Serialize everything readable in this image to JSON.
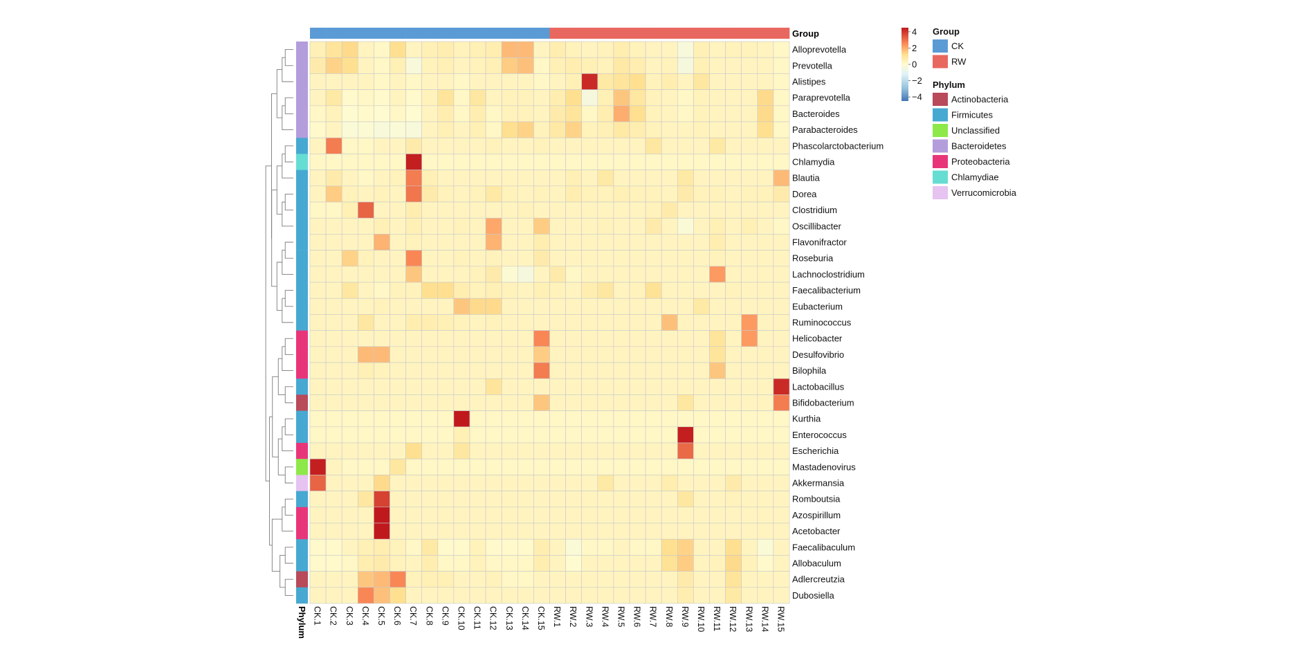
{
  "chart_data": {
    "type": "heatmap",
    "title": "",
    "xlabel": "",
    "ylabel": "",
    "columns": [
      "CK.1",
      "CK.2",
      "CK.3",
      "CK.4",
      "CK.5",
      "CK.6",
      "CK.7",
      "CK.8",
      "CK.9",
      "CK.10",
      "CK.11",
      "CK.12",
      "CK.13",
      "CK.14",
      "CK.15",
      "RW.1",
      "RW.2",
      "RW.3",
      "RW.4",
      "RW.5",
      "RW.6",
      "RW.7",
      "RW.8",
      "RW.9",
      "RW.10",
      "RW.11",
      "RW.12",
      "RW.13",
      "RW.14",
      "RW.15"
    ],
    "column_groups": [
      "CK",
      "CK",
      "CK",
      "CK",
      "CK",
      "CK",
      "CK",
      "CK",
      "CK",
      "CK",
      "CK",
      "CK",
      "CK",
      "CK",
      "CK",
      "RW",
      "RW",
      "RW",
      "RW",
      "RW",
      "RW",
      "RW",
      "RW",
      "RW",
      "RW",
      "RW",
      "RW",
      "RW",
      "RW",
      "RW"
    ],
    "rows": [
      "Alloprevotella",
      "Prevotella",
      "Alistipes",
      "Paraprevotella",
      "Bacteroides",
      "Parabacteroides",
      "Phascolarctobacterium",
      "Chlamydia",
      "Blautia",
      "Dorea",
      "Clostridium",
      "Oscillibacter",
      "Flavonifractor",
      "Roseburia",
      "Lachnoclostridium",
      "Faecalibacterium",
      "Eubacterium",
      "Ruminococcus",
      "Helicobacter",
      "Desulfovibrio",
      "Bilophila",
      "Lactobacillus",
      "Bifidobacterium",
      "Kurthia",
      "Enterococcus",
      "Escherichia",
      "Mastadenovirus",
      "Akkermansia",
      "Romboutsia",
      "Azospirillum",
      "Acetobacter",
      "Faecalibaculum",
      "Allobaculum",
      "Adlercreutzia",
      "Dubosiella"
    ],
    "row_phylum": [
      "Bacteroidetes",
      "Bacteroidetes",
      "Bacteroidetes",
      "Bacteroidetes",
      "Bacteroidetes",
      "Bacteroidetes",
      "Firmicutes",
      "Chlamydiae",
      "Firmicutes",
      "Firmicutes",
      "Firmicutes",
      "Firmicutes",
      "Firmicutes",
      "Firmicutes",
      "Firmicutes",
      "Firmicutes",
      "Firmicutes",
      "Firmicutes",
      "Proteobacteria",
      "Proteobacteria",
      "Proteobacteria",
      "Firmicutes",
      "Actinobacteria",
      "Firmicutes",
      "Firmicutes",
      "Proteobacteria",
      "Unclassified",
      "Verrucomicrobia",
      "Firmicutes",
      "Proteobacteria",
      "Proteobacteria",
      "Firmicutes",
      "Firmicutes",
      "Actinobacteria",
      "Firmicutes"
    ],
    "values": [
      [
        0.5,
        1,
        1.3,
        0.3,
        0.2,
        1.2,
        0.3,
        0.5,
        0.6,
        0.4,
        0.5,
        0.6,
        1.8,
        1.8,
        0.3,
        0.6,
        0.4,
        0.3,
        0.4,
        0.6,
        0.4,
        0.3,
        0.3,
        -0.3,
        0.5,
        0.3,
        0.4,
        0.4,
        0.3,
        0.2
      ],
      [
        0.7,
        1.4,
        1.2,
        0.3,
        0.2,
        0.5,
        -0.3,
        0.4,
        0.5,
        0.3,
        0.4,
        0.5,
        1.5,
        1.7,
        0.2,
        0.5,
        0.6,
        0.5,
        0.4,
        0.8,
        0.6,
        0.3,
        0.4,
        -0.4,
        0.5,
        0.3,
        0.3,
        0.3,
        0.3,
        0.2
      ],
      [
        0.3,
        0.3,
        0.3,
        0.3,
        0.2,
        0.3,
        0.2,
        0.3,
        0.3,
        0.2,
        0.3,
        0.3,
        0.3,
        0.3,
        0.2,
        0.3,
        0.5,
        4.2,
        0.8,
        1,
        1.2,
        0.4,
        0.6,
        0.3,
        0.9,
        0.3,
        0.3,
        0.3,
        0.3,
        0.2
      ],
      [
        0.3,
        0.8,
        0.1,
        0.2,
        0.1,
        0.3,
        0.1,
        0.4,
        1,
        0.2,
        0.9,
        0.3,
        0.4,
        0.4,
        0.3,
        0.6,
        1.2,
        -0.4,
        0.5,
        1.6,
        0.9,
        0.4,
        0.3,
        0.2,
        0.4,
        0.3,
        0.3,
        0.3,
        1.3,
        0.2
      ],
      [
        0.2,
        0.4,
        0,
        0.1,
        0,
        0.2,
        0,
        0.3,
        0.6,
        0.2,
        0.6,
        0.2,
        0.4,
        0.4,
        0.3,
        0.7,
        1,
        0.2,
        0.6,
        2,
        1.2,
        0.4,
        0.3,
        0.2,
        0.4,
        0.3,
        0.3,
        0.3,
        1.3,
        0.2
      ],
      [
        0.1,
        0.3,
        -0.2,
        -0.1,
        -0.3,
        -0.2,
        -0.3,
        0.3,
        0.5,
        0.3,
        0.5,
        0.2,
        1.2,
        1.4,
        0.4,
        0.8,
        1.4,
        0.4,
        0.5,
        0.8,
        0.6,
        0.4,
        0.3,
        0.3,
        0.4,
        0.3,
        0.3,
        0.3,
        1.2,
        0.2
      ],
      [
        0.3,
        2.8,
        0.2,
        0.2,
        0.3,
        0.3,
        0.7,
        0.3,
        0.3,
        0.3,
        0.3,
        0.4,
        0.3,
        0.3,
        0.4,
        0.3,
        0.3,
        0.3,
        0.3,
        0.3,
        0.3,
        0.9,
        0.3,
        0.3,
        0.3,
        0.8,
        0.3,
        0.3,
        0.3,
        0.3
      ],
      [
        0.2,
        0.2,
        0.2,
        0.2,
        0.2,
        0.2,
        4.4,
        0.2,
        0.2,
        0.2,
        0.2,
        0.2,
        0.2,
        0.2,
        0.2,
        0.2,
        0.2,
        0.2,
        0.2,
        0.2,
        0.2,
        0.2,
        0.2,
        0.2,
        0.2,
        0.2,
        0.2,
        0.2,
        0.2,
        0.2
      ],
      [
        0.3,
        0.7,
        0.3,
        0.2,
        0.3,
        0.4,
        2.8,
        0.5,
        0.3,
        0.3,
        0.3,
        0.3,
        0.3,
        0.3,
        0.3,
        0.3,
        0.5,
        0.3,
        0.8,
        0.3,
        0.3,
        0.3,
        0.3,
        0.8,
        0.3,
        0.3,
        0.3,
        0.3,
        0.3,
        1.8
      ],
      [
        0.3,
        1.5,
        0.4,
        0.3,
        0.4,
        0.3,
        2.9,
        0.7,
        0.4,
        0.3,
        0.4,
        0.8,
        0.4,
        0.3,
        0.4,
        0.3,
        0.6,
        0.4,
        0.4,
        0.5,
        0.4,
        0.4,
        0.3,
        0.7,
        0.4,
        0.4,
        0.3,
        0.4,
        0.4,
        0.7
      ],
      [
        0.2,
        0.2,
        0.5,
        3.2,
        0.3,
        0.3,
        0.6,
        0.3,
        0.3,
        0.3,
        0.3,
        0.3,
        0.3,
        0.4,
        0.3,
        0.3,
        0.3,
        0.3,
        0.3,
        0.3,
        0.3,
        0.4,
        0.7,
        0.3,
        0.3,
        0.3,
        0.3,
        0.3,
        0.3,
        0.3
      ],
      [
        0.3,
        0.3,
        0.3,
        0.3,
        0.5,
        0.3,
        0.5,
        0.3,
        0.3,
        0.4,
        0.3,
        2.1,
        0.3,
        0.3,
        1.5,
        0.3,
        0.3,
        0.3,
        0.4,
        0.3,
        0.3,
        0.7,
        0.3,
        -0.2,
        0.3,
        0.5,
        0.3,
        0.5,
        0.3,
        0.2
      ],
      [
        0.3,
        0.3,
        0.3,
        0.3,
        1.9,
        0.3,
        0.4,
        0.3,
        0.3,
        0.3,
        0.3,
        1.9,
        0.3,
        0.3,
        0.6,
        0.3,
        0.3,
        0.3,
        0.3,
        0.3,
        0.3,
        0.3,
        0.3,
        0.3,
        0.3,
        0.6,
        0.3,
        0.3,
        0.3,
        0.3
      ],
      [
        0.3,
        0.3,
        1.4,
        0.4,
        0.3,
        0.3,
        2.6,
        0.3,
        0.3,
        0.4,
        0.3,
        0.4,
        0.3,
        0.3,
        0.7,
        0.3,
        0.3,
        0.3,
        0.3,
        0.3,
        0.3,
        0.3,
        0.3,
        0.3,
        0.3,
        0.4,
        0.3,
        0.3,
        0.3,
        0.3
      ],
      [
        0.3,
        0.3,
        0.3,
        0.3,
        0.3,
        0.3,
        1.6,
        0.3,
        0.3,
        0.3,
        0.4,
        0.7,
        -0.1,
        -0.4,
        0.3,
        0.7,
        0.2,
        0.3,
        0.3,
        0.3,
        0.3,
        0.3,
        0.3,
        0.3,
        0.3,
        2.3,
        0.3,
        0.3,
        0.3,
        0.3
      ],
      [
        0.3,
        0.3,
        0.9,
        0.3,
        0.2,
        0.4,
        0.4,
        1.2,
        1.2,
        0.6,
        0.4,
        0.5,
        0.4,
        0.3,
        0.5,
        0.4,
        0.3,
        0.6,
        0.9,
        0.3,
        0.4,
        1.1,
        0.3,
        0.3,
        0.3,
        0.3,
        0.4,
        0.3,
        0.3,
        0.3
      ],
      [
        0.3,
        0.3,
        0.3,
        0.3,
        0.4,
        0.3,
        0.3,
        0.3,
        0.3,
        1.6,
        1.3,
        1.3,
        0.3,
        0.3,
        0.3,
        0.3,
        0.3,
        0.3,
        0.3,
        0.3,
        0.3,
        0.3,
        0.3,
        0.3,
        0.8,
        0.3,
        0.3,
        0.3,
        0.3,
        0.3
      ],
      [
        0.3,
        0.3,
        0.3,
        0.9,
        0.3,
        0.3,
        0.6,
        0.6,
        0.5,
        0.4,
        0.3,
        0.4,
        0.3,
        0.3,
        0.3,
        0.3,
        0.3,
        0.3,
        0.3,
        0.3,
        0.3,
        0.3,
        1.7,
        0.3,
        0.3,
        0.3,
        0.3,
        2.3,
        0.3,
        0.3
      ],
      [
        0.3,
        0.3,
        0.3,
        0.3,
        0.3,
        0.3,
        0.3,
        0.3,
        0.3,
        0.3,
        0.3,
        0.3,
        0.3,
        0.3,
        2.6,
        0.3,
        0.3,
        0.3,
        0.3,
        0.3,
        0.3,
        0.3,
        0.3,
        0.3,
        0.3,
        1,
        0.3,
        2.3,
        0.3,
        0.3
      ],
      [
        0.3,
        0.3,
        0.3,
        1.8,
        1.8,
        0.3,
        0.3,
        0.3,
        0.3,
        0.3,
        0.3,
        0.3,
        0.3,
        0.3,
        1.5,
        0.3,
        0.3,
        0.3,
        0.3,
        0.3,
        0.3,
        0.3,
        0.3,
        0.3,
        0.3,
        1,
        0.3,
        0.3,
        0.3,
        0.3
      ],
      [
        0.3,
        0.3,
        0.3,
        0.5,
        0.4,
        0.3,
        0.3,
        0.3,
        0.3,
        0.3,
        0.3,
        0.3,
        0.3,
        0.3,
        2.8,
        0.3,
        0.3,
        0.3,
        0.3,
        0.3,
        0.3,
        0.3,
        0.3,
        0.3,
        0.3,
        1.6,
        0.3,
        0.3,
        0.3,
        0.3
      ],
      [
        0.3,
        0.3,
        0.3,
        0.3,
        0.3,
        0.3,
        0.3,
        0.3,
        0.3,
        0.3,
        0.3,
        1,
        0.3,
        0.3,
        0.3,
        0.3,
        0.3,
        0.3,
        0.3,
        0.3,
        0.3,
        0.3,
        0.3,
        0.3,
        0.3,
        0.3,
        0.3,
        0.3,
        0.3,
        4.2
      ],
      [
        0.3,
        0.3,
        0.3,
        0.3,
        0.3,
        0.3,
        0.3,
        0.3,
        0.3,
        0.3,
        0.3,
        0.3,
        0.3,
        0.3,
        1.6,
        0.3,
        0.3,
        0.3,
        0.3,
        0.3,
        0.3,
        0.3,
        0.3,
        0.9,
        0.3,
        0.3,
        0.3,
        0.3,
        0.3,
        2.8
      ],
      [
        0.2,
        0.2,
        0.2,
        0.2,
        0.2,
        0.2,
        0.2,
        0.2,
        0.2,
        4.5,
        0.2,
        0.2,
        0.2,
        0.2,
        0.2,
        0.2,
        0.2,
        0.2,
        0.2,
        0.2,
        0.2,
        0.2,
        0.2,
        0.2,
        0.2,
        0.2,
        0.2,
        0.2,
        0.2,
        0.2
      ],
      [
        0.2,
        0.2,
        0.2,
        0.2,
        0.2,
        0.2,
        0.2,
        0.2,
        0.2,
        0.5,
        0.2,
        0.2,
        0.2,
        0.2,
        0.2,
        0.2,
        0.2,
        0.2,
        0.2,
        0.2,
        0.2,
        0.2,
        0.2,
        4.4,
        0.2,
        0.2,
        0.2,
        0.2,
        0.2,
        0.2
      ],
      [
        0.3,
        0.3,
        0.3,
        0.3,
        0.3,
        0.3,
        1.2,
        0.3,
        0.3,
        0.9,
        0.3,
        0.3,
        0.3,
        0.3,
        0.3,
        0.3,
        0.3,
        0.3,
        0.3,
        0.3,
        0.3,
        0.3,
        0.3,
        3.1,
        0.3,
        0.3,
        0.3,
        0.3,
        0.3,
        0.3
      ],
      [
        4.4,
        0.3,
        0.2,
        0.2,
        0.2,
        0.9,
        0.2,
        0.2,
        0.2,
        0.2,
        0.2,
        0.2,
        0.2,
        0.2,
        0.2,
        0.2,
        0.2,
        0.2,
        0.2,
        0.2,
        0.2,
        0.2,
        0.2,
        0.2,
        0.2,
        0.2,
        0.2,
        0.2,
        0.2,
        0.2
      ],
      [
        3.2,
        0.3,
        0.3,
        0.3,
        1.3,
        0.3,
        0.3,
        0.3,
        0.3,
        0.3,
        0.3,
        0.3,
        0.3,
        0.3,
        0.3,
        0.3,
        0.3,
        0.3,
        0.8,
        0.3,
        0.3,
        0.3,
        0.6,
        0.3,
        0.3,
        0.3,
        0.7,
        0.3,
        0.3,
        0.3
      ],
      [
        0.3,
        0.3,
        0.3,
        0.9,
        3.8,
        0.3,
        0.3,
        0.3,
        0.3,
        0.3,
        0.3,
        0.3,
        0.3,
        0.3,
        0.3,
        0.3,
        0.3,
        0.3,
        0.3,
        0.3,
        0.3,
        0.3,
        0.3,
        0.9,
        0.3,
        0.3,
        0.4,
        0.3,
        0.3,
        0.3
      ],
      [
        0.3,
        0.3,
        0.3,
        0.3,
        4.5,
        0.3,
        0.3,
        0.3,
        0.3,
        0.3,
        0.3,
        0.3,
        0.3,
        0.3,
        0.3,
        0.3,
        0.3,
        0.3,
        0.3,
        0.3,
        0.3,
        0.3,
        0.3,
        0.3,
        0.3,
        0.3,
        0.3,
        0.3,
        0.3,
        0.3
      ],
      [
        0.3,
        0.3,
        0.3,
        0.3,
        4.5,
        0.3,
        0.3,
        0.3,
        0.3,
        0.3,
        0.3,
        0.3,
        0.3,
        0.3,
        0.3,
        0.3,
        0.3,
        0.3,
        0.3,
        0.3,
        0.3,
        0.3,
        0.3,
        0.3,
        0.3,
        0.3,
        0.3,
        0.3,
        0.3,
        0.3
      ],
      [
        0.1,
        0.1,
        0.3,
        0.5,
        0.6,
        0.4,
        0.2,
        0.8,
        0.1,
        0.1,
        0.4,
        0.1,
        0.1,
        0.1,
        0.6,
        0.3,
        -0.2,
        0.2,
        0.2,
        0.3,
        0.2,
        0.2,
        1.2,
        1.4,
        0.3,
        0.3,
        1.2,
        0.3,
        -0.2,
        0.3
      ],
      [
        0.1,
        0.1,
        0.2,
        0.6,
        0.7,
        0.4,
        0.3,
        0.6,
        0.2,
        0.2,
        0.4,
        0.2,
        0.2,
        0.2,
        0.6,
        0.3,
        0,
        0.3,
        0.3,
        0.3,
        0.3,
        0.3,
        1.1,
        1.5,
        0.3,
        0.4,
        1.3,
        0.4,
        0.1,
        0.3
      ],
      [
        0.3,
        0.3,
        0.3,
        1.6,
        1.8,
        2.6,
        0.4,
        0.5,
        0.5,
        0.3,
        0.3,
        0.4,
        0.2,
        0.2,
        0.3,
        0.3,
        0.3,
        0.3,
        0.3,
        0.3,
        0.3,
        0.3,
        0.3,
        0.7,
        0.3,
        0.3,
        1,
        0.3,
        0.3,
        0.3
      ],
      [
        0.3,
        0.3,
        0.3,
        2.6,
        1.7,
        1.2,
        0.3,
        0.3,
        0.3,
        0.3,
        0.3,
        0.3,
        0.3,
        0.3,
        0.3,
        0.3,
        0.3,
        0.3,
        0.3,
        0.3,
        0.3,
        0.3,
        0.3,
        0.6,
        0.3,
        0.3,
        0.8,
        0.3,
        0.3,
        0.3
      ]
    ],
    "colorbar": {
      "ticks": [
        "4",
        "2",
        "0",
        "−2",
        "−4"
      ],
      "range": [
        -4.5,
        4.5
      ]
    },
    "group_legend": {
      "title": "Group",
      "items": [
        {
          "label": "CK",
          "color": "#5b9bd5"
        },
        {
          "label": "RW",
          "color": "#e8685f"
        }
      ]
    },
    "phylum_legend": {
      "title": "Phylum",
      "items": [
        {
          "label": "Actinobacteria",
          "color": "#b84a5a"
        },
        {
          "label": "Firmicutes",
          "color": "#47a9d1"
        },
        {
          "label": "Unclassified",
          "color": "#8ee84a"
        },
        {
          "label": "Bacteroidetes",
          "color": "#b39ddb"
        },
        {
          "label": "Proteobacteria",
          "color": "#e8357a"
        },
        {
          "label": "Chlamydiae",
          "color": "#66ddd3"
        },
        {
          "label": "Verrucomicrobia",
          "color": "#e6c3f0"
        }
      ]
    },
    "group_track_label": "Group",
    "phylum_track_label": "Phylum",
    "dendrogram": "left",
    "grid": true
  }
}
